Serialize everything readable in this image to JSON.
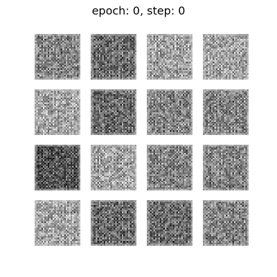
{
  "figure": {
    "title": "epoch: 0, step: 0"
  },
  "grid": {
    "rows": 4,
    "cols": 4,
    "image_resolution": 28,
    "colormap": "grayscale",
    "samples": [
      {
        "id": 1,
        "tone": "medium"
      },
      {
        "id": 2,
        "tone": "dark"
      },
      {
        "id": 3,
        "tone": "light"
      },
      {
        "id": 4,
        "tone": "light"
      },
      {
        "id": 5,
        "tone": "light"
      },
      {
        "id": 6,
        "tone": "dark"
      },
      {
        "id": 7,
        "tone": "medium"
      },
      {
        "id": 8,
        "tone": "medium"
      },
      {
        "id": 9,
        "tone": "very-dark"
      },
      {
        "id": 10,
        "tone": "light"
      },
      {
        "id": 11,
        "tone": "medium"
      },
      {
        "id": 12,
        "tone": "medium"
      },
      {
        "id": 13,
        "tone": "light"
      },
      {
        "id": 14,
        "tone": "dark"
      },
      {
        "id": 15,
        "tone": "dark"
      },
      {
        "id": 16,
        "tone": "medium"
      }
    ]
  }
}
